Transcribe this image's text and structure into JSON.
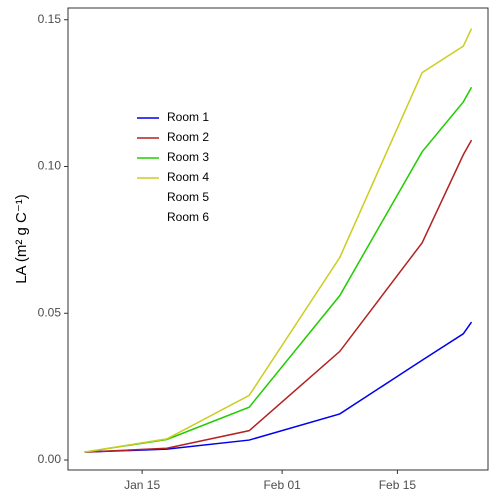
{
  "chart_data": {
    "type": "line",
    "y_label": "LA (m² g C⁻¹)",
    "x": [
      "Jan 08",
      "Jan 18",
      "Jan 28",
      "Feb 08",
      "Feb 18",
      "Feb 23",
      "Feb 24"
    ],
    "xlim": [
      "Jan 06",
      "Feb 26"
    ],
    "xticks": [
      "Jan 15",
      "Feb 01",
      "Feb 15"
    ],
    "ylim": [
      -0.0034,
      0.154
    ],
    "yticks": [
      {
        "value": 0,
        "label": "0.00"
      },
      0.05,
      {
        "value": 0.1,
        "label": "0.10"
      },
      0.15
    ],
    "grid": false,
    "legend": "upper left",
    "series": [
      {
        "name": "Room 1",
        "color": "#0000ee",
        "values": [
          0.0027,
          0.0037,
          0.0068,
          0.0157,
          0.034,
          0.043,
          0.047
        ]
      },
      {
        "name": "Room 2",
        "color": "#b22222",
        "values": [
          0.0027,
          0.004,
          0.01,
          0.037,
          0.074,
          0.104,
          0.109
        ]
      },
      {
        "name": "Room 3",
        "color": "#22cc00",
        "values": [
          0.0027,
          0.007,
          0.018,
          0.056,
          0.105,
          0.122,
          0.127
        ]
      },
      {
        "name": "Room 4",
        "color": "#cccc22",
        "values": [
          0.0027,
          0.0072,
          0.022,
          0.069,
          0.132,
          0.141,
          0.147
        ]
      },
      {
        "name": "Room 5",
        "color": "#ffffff",
        "values": [
          null,
          null,
          null,
          null,
          null,
          null,
          null
        ]
      },
      {
        "name": "Room 6",
        "color": "#ffffff",
        "values": [
          null,
          null,
          null,
          null,
          null,
          null,
          null
        ]
      }
    ]
  }
}
